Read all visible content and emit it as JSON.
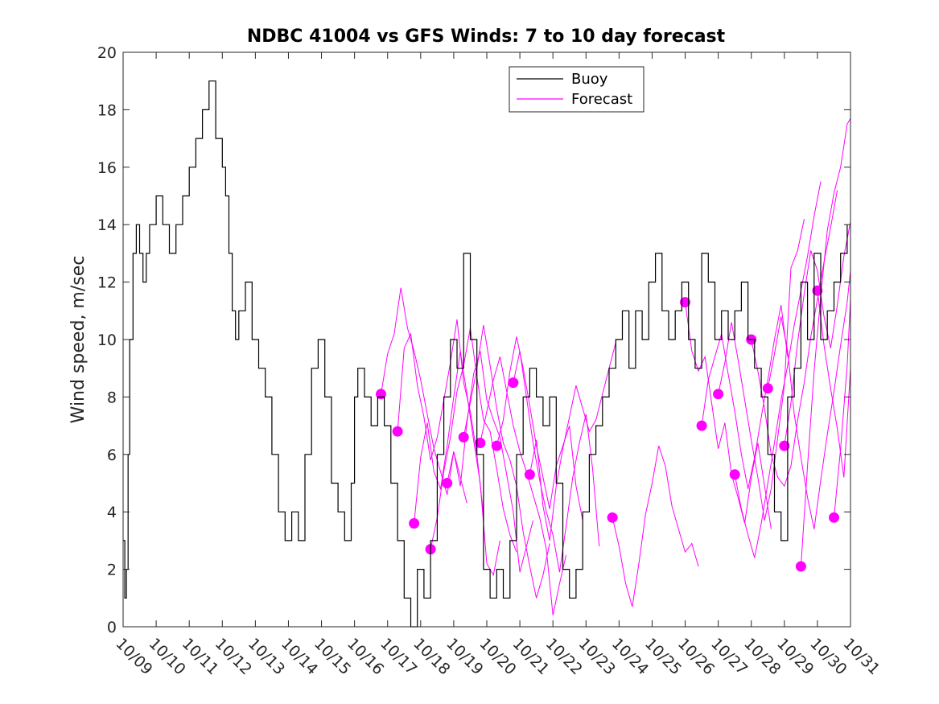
{
  "chart_data": {
    "type": "line",
    "title": "NDBC 41004 vs GFS Winds: 7 to 10 day forecast",
    "xlabel": "",
    "ylabel": "Wind speed, m/sec",
    "x_start_date": "10/09",
    "x_tick_labels": [
      "10/09",
      "10/10",
      "10/11",
      "10/12",
      "10/13",
      "10/14",
      "10/15",
      "10/16",
      "10/17",
      "10/18",
      "10/19",
      "10/20",
      "10/21",
      "10/22",
      "10/23",
      "10/24",
      "10/25",
      "10/26",
      "10/27",
      "10/28",
      "10/29",
      "10/30",
      "10/31"
    ],
    "xlim": [
      0,
      22
    ],
    "ylim": [
      0,
      20
    ],
    "y_ticks": [
      0,
      2,
      4,
      6,
      8,
      10,
      12,
      14,
      16,
      18,
      20
    ],
    "grid": false,
    "legend": {
      "position": "top-center",
      "entries": [
        "Buoy",
        "Forecast"
      ]
    },
    "colors": {
      "buoy": "#000000",
      "forecast": "#ff00ff"
    },
    "buoy": {
      "name": "Buoy",
      "x": [
        0.0,
        0.05,
        0.1,
        0.15,
        0.2,
        0.3,
        0.4,
        0.5,
        0.6,
        0.7,
        0.8,
        0.9,
        1.0,
        1.2,
        1.4,
        1.6,
        1.8,
        2.0,
        2.2,
        2.4,
        2.6,
        2.8,
        3.0,
        3.1,
        3.2,
        3.3,
        3.4,
        3.5,
        3.7,
        3.9,
        4.1,
        4.3,
        4.5,
        4.7,
        4.9,
        5.1,
        5.3,
        5.5,
        5.7,
        5.9,
        6.1,
        6.3,
        6.5,
        6.7,
        6.9,
        7.0,
        7.1,
        7.3,
        7.5,
        7.7,
        7.9,
        8.1,
        8.3,
        8.5,
        8.7,
        8.9,
        9.1,
        9.3,
        9.5,
        9.7,
        9.9,
        10.1,
        10.3,
        10.5,
        10.7,
        10.9,
        11.1,
        11.3,
        11.5,
        11.7,
        11.9,
        12.1,
        12.3,
        12.5,
        12.7,
        12.9,
        13.1,
        13.3,
        13.5,
        13.7,
        13.9,
        14.1,
        14.3,
        14.5,
        14.7,
        14.9,
        15.1,
        15.3,
        15.5,
        15.7,
        15.9,
        16.1,
        16.3,
        16.5,
        16.7,
        16.9,
        17.1,
        17.3,
        17.5,
        17.7,
        17.9,
        18.1,
        18.3,
        18.5,
        18.7,
        18.9,
        19.1,
        19.3,
        19.5,
        19.7,
        19.9,
        20.1,
        20.3,
        20.5,
        20.7,
        20.9,
        21.1,
        21.3,
        21.5,
        21.7,
        21.9
      ],
      "y": [
        3,
        1,
        2,
        6,
        10,
        13,
        14,
        13,
        12,
        13,
        14,
        14,
        15,
        14,
        13,
        14,
        15,
        16,
        17,
        18,
        19,
        17,
        16,
        15,
        13,
        11,
        10,
        11,
        12,
        10,
        9,
        8,
        6,
        4,
        3,
        4,
        3,
        6,
        9,
        10,
        8,
        5,
        4,
        3,
        5,
        8,
        9,
        8,
        7,
        8,
        7,
        5,
        3,
        1,
        0,
        2,
        1,
        3,
        6,
        8,
        10,
        9,
        13,
        10,
        6,
        2,
        1,
        2,
        1,
        3,
        6,
        8,
        9,
        8,
        7,
        8,
        5,
        2,
        1,
        2,
        4,
        6,
        7,
        8,
        9,
        10,
        11,
        9,
        11,
        10,
        12,
        13,
        11,
        10,
        11,
        12,
        10,
        9,
        13,
        12,
        10,
        11,
        10,
        11,
        12,
        10,
        9,
        8,
        6,
        4,
        3,
        8,
        9,
        12,
        10,
        13,
        10,
        11,
        12,
        13,
        14
      ]
    },
    "forecast_series": [
      {
        "x": [
          7.8,
          8.0,
          8.2,
          8.4,
          8.6,
          8.8,
          9.0,
          9.2,
          9.4,
          9.6,
          9.8,
          10.0,
          10.2,
          10.4
        ],
        "y": [
          8.1,
          9.5,
          10.2,
          11.8,
          10.4,
          9.6,
          8.6,
          7.4,
          6.2,
          5.4,
          4.6,
          6.1,
          5.2,
          4.3
        ]
      },
      {
        "x": [
          8.3,
          8.5,
          8.7,
          8.9,
          9.1,
          9.3,
          9.5,
          9.7,
          9.9,
          10.1,
          10.3,
          10.5,
          10.7,
          10.9
        ],
        "y": [
          6.8,
          9.7,
          10.2,
          8.4,
          7.3,
          5.8,
          6.6,
          7.9,
          9.2,
          10.7,
          8.5,
          7.5,
          6.0,
          3.9
        ]
      },
      {
        "x": [
          8.8,
          9.0,
          9.2,
          9.4,
          9.6,
          9.8,
          10.0,
          10.2,
          10.4,
          10.6,
          10.8,
          11.0,
          11.2,
          11.4
        ],
        "y": [
          3.6,
          5.9,
          7.1,
          5.4,
          4.8,
          6.3,
          8.0,
          9.6,
          8.1,
          6.5,
          5.0,
          2.2,
          1.8,
          3.0
        ]
      },
      {
        "x": [
          9.3,
          9.5,
          9.7,
          9.9,
          10.1,
          10.3,
          10.5,
          10.7,
          10.9,
          11.1,
          11.3,
          11.5,
          11.7,
          11.9
        ],
        "y": [
          2.7,
          3.8,
          5.4,
          6.6,
          8.2,
          9.1,
          10.4,
          8.7,
          7.2,
          6.8,
          5.5,
          4.1,
          3.2,
          2.6
        ]
      },
      {
        "x": [
          9.8,
          10.0,
          10.2,
          10.4,
          10.6,
          10.8,
          11.0,
          11.2,
          11.4,
          11.6,
          11.8,
          12.0,
          12.2,
          12.4
        ],
        "y": [
          5.0,
          6.1,
          4.9,
          7.1,
          8.8,
          9.6,
          7.9,
          7.2,
          6.6,
          5.3,
          4.0,
          1.9,
          2.8,
          3.7
        ]
      },
      {
        "x": [
          10.3,
          10.5,
          10.7,
          10.9,
          11.1,
          11.3,
          11.5,
          11.7,
          11.9,
          12.1,
          12.3,
          12.5,
          12.7,
          12.9
        ],
        "y": [
          6.6,
          7.8,
          9.0,
          10.5,
          9.1,
          7.6,
          6.4,
          5.8,
          4.9,
          3.3,
          2.1,
          1.0,
          1.8,
          2.9
        ]
      },
      {
        "x": [
          10.8,
          11.0,
          11.2,
          11.4,
          11.6,
          11.8,
          12.0,
          12.2,
          12.4,
          12.6,
          12.8,
          13.0,
          13.2,
          13.4
        ],
        "y": [
          6.4,
          7.5,
          8.6,
          9.4,
          8.2,
          7.0,
          6.1,
          5.4,
          4.6,
          3.8,
          2.7,
          0.4,
          1.5,
          2.5
        ]
      },
      {
        "x": [
          11.3,
          11.5,
          11.7,
          11.9,
          12.1,
          12.3,
          12.5,
          12.7,
          12.9,
          13.1,
          13.3,
          13.5,
          13.7,
          13.9
        ],
        "y": [
          6.3,
          7.2,
          8.9,
          10.1,
          9.0,
          7.7,
          6.3,
          5.2,
          4.1,
          5.6,
          6.3,
          7.0,
          4.9,
          3.7
        ]
      },
      {
        "x": [
          11.8,
          12.0,
          12.2,
          12.4,
          12.6,
          12.8,
          13.0,
          13.2,
          13.4,
          13.6,
          13.8,
          14.0,
          14.2,
          14.4
        ],
        "y": [
          8.5,
          9.6,
          8.0,
          6.4,
          5.1,
          4.0,
          3.2,
          1.9,
          3.5,
          5.2,
          6.4,
          7.4,
          5.5,
          2.8
        ]
      },
      {
        "x": [
          12.3,
          12.5,
          12.7,
          12.9,
          13.1,
          13.3,
          13.5,
          13.7,
          13.9,
          14.1,
          14.3,
          14.5,
          14.7,
          14.9
        ],
        "y": [
          5.3,
          6.5,
          4.2,
          3.0,
          4.9,
          6.2,
          7.3,
          8.4,
          7.6,
          6.8,
          7.2,
          8.1,
          9.0,
          9.9
        ]
      },
      {
        "x": [
          14.8,
          15.0,
          15.2,
          15.4,
          15.6,
          15.8,
          16.0,
          16.2,
          16.4,
          16.6,
          16.8,
          17.0,
          17.2,
          17.4
        ],
        "y": [
          3.8,
          2.8,
          1.5,
          0.7,
          2.2,
          3.9,
          5.0,
          6.3,
          5.6,
          4.2,
          3.4,
          2.6,
          2.9,
          2.1
        ]
      },
      {
        "x": [
          17.0,
          17.2,
          17.4,
          17.6,
          17.8,
          18.0,
          18.2,
          18.4,
          18.6,
          18.8,
          19.0,
          19.2,
          19.4,
          19.6
        ],
        "y": [
          11.3,
          9.6,
          8.9,
          9.4,
          7.8,
          6.2,
          7.1,
          5.3,
          4.5,
          3.6,
          5.2,
          6.4,
          4.9,
          3.4
        ]
      },
      {
        "x": [
          17.5,
          17.7,
          17.9,
          18.1,
          18.3,
          18.5,
          18.7,
          18.9,
          19.1,
          19.3,
          19.5,
          19.7,
          19.9,
          20.1
        ],
        "y": [
          7.0,
          8.6,
          9.4,
          10.2,
          8.8,
          7.5,
          6.0,
          4.8,
          5.9,
          7.3,
          8.6,
          10.0,
          11.2,
          9.4
        ]
      },
      {
        "x": [
          18.0,
          18.2,
          18.4,
          18.6,
          18.8,
          19.0,
          19.2,
          19.4,
          19.6,
          19.8,
          20.0,
          20.2,
          20.4,
          20.6
        ],
        "y": [
          8.1,
          9.2,
          10.6,
          9.3,
          7.9,
          6.5,
          5.2,
          3.7,
          4.8,
          6.6,
          8.4,
          12.5,
          13.1,
          14.2
        ]
      },
      {
        "x": [
          18.5,
          18.7,
          18.9,
          19.1,
          19.3,
          19.5,
          19.7,
          19.9,
          20.1,
          20.3,
          20.5,
          20.7,
          20.9,
          21.1
        ],
        "y": [
          5.3,
          4.1,
          3.2,
          2.4,
          3.6,
          5.0,
          6.4,
          7.9,
          9.1,
          10.5,
          11.7,
          12.9,
          14.3,
          15.5
        ]
      },
      {
        "x": [
          19.0,
          19.2,
          19.4,
          19.6,
          19.8,
          20.0,
          20.2,
          20.4,
          20.6,
          20.8,
          21.0,
          21.2,
          21.4,
          21.6
        ],
        "y": [
          10.0,
          8.9,
          7.6,
          6.0,
          5.2,
          4.9,
          5.6,
          7.2,
          8.5,
          10.1,
          11.4,
          12.7,
          13.9,
          15.2
        ]
      },
      {
        "x": [
          19.5,
          19.7,
          19.9,
          20.1,
          20.3,
          20.5,
          20.7,
          20.9,
          21.1,
          21.3,
          21.5,
          21.7,
          21.9,
          22.0
        ],
        "y": [
          8.3,
          9.5,
          10.8,
          9.6,
          7.4,
          5.9,
          4.5,
          3.4,
          5.1,
          6.7,
          8.2,
          9.8,
          11.3,
          12.4
        ]
      },
      {
        "x": [
          20.0,
          20.2,
          20.4,
          20.6,
          20.8,
          21.0,
          21.2,
          21.4,
          21.6,
          21.8,
          22.0
        ],
        "y": [
          6.3,
          7.8,
          9.9,
          11.6,
          13.1,
          12.4,
          10.8,
          9.7,
          11.2,
          12.9,
          14.1
        ]
      },
      {
        "x": [
          20.5,
          20.7,
          20.9,
          21.1,
          21.3,
          21.5,
          21.7,
          21.9,
          22.0
        ],
        "y": [
          2.1,
          5.6,
          8.9,
          11.5,
          13.8,
          15.1,
          16.0,
          17.5,
          17.7
        ]
      },
      {
        "x": [
          21.0,
          21.2,
          21.4,
          21.6,
          21.8,
          22.0
        ],
        "y": [
          11.7,
          9.8,
          8.3,
          6.9,
          5.2,
          9.0
        ]
      },
      {
        "x": [
          21.5,
          21.7,
          21.9,
          22.0
        ],
        "y": [
          3.8,
          6.2,
          9.1,
          11.4
        ]
      }
    ]
  }
}
